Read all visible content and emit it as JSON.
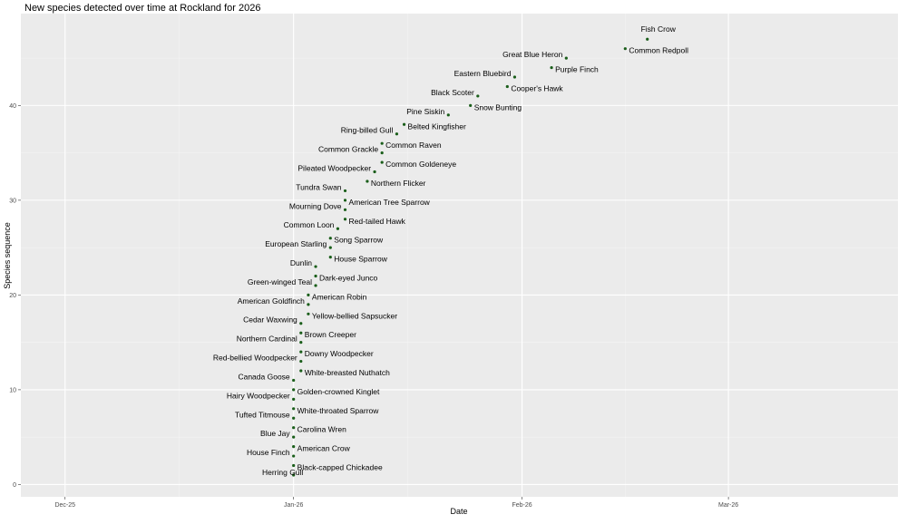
{
  "chart_data": {
    "type": "scatter",
    "title": "New species detected over time at Rockland for 2026",
    "xlabel": "Date",
    "ylabel": "Species sequence",
    "x_ticks": [
      {
        "date": "2025-12-01",
        "label": "Dec-25"
      },
      {
        "date": "2026-01-01",
        "label": "Jan-26"
      },
      {
        "date": "2026-02-01",
        "label": "Feb-26"
      },
      {
        "date": "2026-03-01",
        "label": "Mar-26"
      }
    ],
    "y_ticks": [
      0,
      10,
      20,
      30,
      40
    ],
    "xlim": [
      "2025-11-25",
      "2026-03-24"
    ],
    "ylim": [
      -1.3,
      49.7
    ],
    "grid": true,
    "point_color": "#1a5e1a",
    "points": [
      {
        "n": 1,
        "date": "2026-01-01",
        "label": "Herring Gull"
      },
      {
        "n": 2,
        "date": "2026-01-01",
        "label": "Black-capped Chickadee"
      },
      {
        "n": 3,
        "date": "2026-01-01",
        "label": "House Finch"
      },
      {
        "n": 4,
        "date": "2026-01-01",
        "label": "American Crow"
      },
      {
        "n": 5,
        "date": "2026-01-01",
        "label": "Blue Jay"
      },
      {
        "n": 6,
        "date": "2026-01-01",
        "label": "Carolina Wren"
      },
      {
        "n": 7,
        "date": "2026-01-01",
        "label": "Tufted Titmouse"
      },
      {
        "n": 8,
        "date": "2026-01-01",
        "label": "White-throated Sparrow"
      },
      {
        "n": 9,
        "date": "2026-01-01",
        "label": "Hairy Woodpecker"
      },
      {
        "n": 10,
        "date": "2026-01-01",
        "label": "Golden-crowned Kinglet"
      },
      {
        "n": 11,
        "date": "2026-01-01",
        "label": "Canada Goose"
      },
      {
        "n": 12,
        "date": "2026-01-02",
        "label": "White-breasted Nuthatch"
      },
      {
        "n": 13,
        "date": "2026-01-02",
        "label": "Red-bellied Woodpecker"
      },
      {
        "n": 14,
        "date": "2026-01-02",
        "label": "Downy Woodpecker"
      },
      {
        "n": 15,
        "date": "2026-01-02",
        "label": "Northern Cardinal"
      },
      {
        "n": 16,
        "date": "2026-01-02",
        "label": "Brown Creeper"
      },
      {
        "n": 17,
        "date": "2026-01-02",
        "label": "Cedar Waxwing"
      },
      {
        "n": 18,
        "date": "2026-01-03",
        "label": "Yellow-bellied Sapsucker"
      },
      {
        "n": 19,
        "date": "2026-01-03",
        "label": "American Goldfinch"
      },
      {
        "n": 20,
        "date": "2026-01-03",
        "label": "American Robin"
      },
      {
        "n": 21,
        "date": "2026-01-04",
        "label": "Green-winged Teal"
      },
      {
        "n": 22,
        "date": "2026-01-04",
        "label": "Dark-eyed Junco"
      },
      {
        "n": 23,
        "date": "2026-01-04",
        "label": "Dunlin"
      },
      {
        "n": 24,
        "date": "2026-01-06",
        "label": "House Sparrow"
      },
      {
        "n": 25,
        "date": "2026-01-06",
        "label": "European Starling"
      },
      {
        "n": 26,
        "date": "2026-01-06",
        "label": "Song Sparrow"
      },
      {
        "n": 27,
        "date": "2026-01-07",
        "label": "Common Loon"
      },
      {
        "n": 28,
        "date": "2026-01-08",
        "label": "Red-tailed Hawk"
      },
      {
        "n": 29,
        "date": "2026-01-08",
        "label": "Mourning Dove"
      },
      {
        "n": 30,
        "date": "2026-01-08",
        "label": "American Tree Sparrow"
      },
      {
        "n": 31,
        "date": "2026-01-08",
        "label": "Tundra Swan"
      },
      {
        "n": 32,
        "date": "2026-01-11",
        "label": "Northern Flicker"
      },
      {
        "n": 33,
        "date": "2026-01-12",
        "label": "Pileated Woodpecker"
      },
      {
        "n": 34,
        "date": "2026-01-13",
        "label": "Common Goldeneye"
      },
      {
        "n": 35,
        "date": "2026-01-13",
        "label": "Common Grackle"
      },
      {
        "n": 36,
        "date": "2026-01-13",
        "label": "Common Raven"
      },
      {
        "n": 37,
        "date": "2026-01-15",
        "label": "Ring-billed Gull"
      },
      {
        "n": 38,
        "date": "2026-01-16",
        "label": "Belted Kingfisher"
      },
      {
        "n": 39,
        "date": "2026-01-22",
        "label": "Pine Siskin"
      },
      {
        "n": 40,
        "date": "2026-01-25",
        "label": "Snow Bunting"
      },
      {
        "n": 41,
        "date": "2026-01-26",
        "label": "Black Scoter"
      },
      {
        "n": 42,
        "date": "2026-01-30",
        "label": "Cooper's Hawk"
      },
      {
        "n": 43,
        "date": "2026-01-31",
        "label": "Eastern Bluebird"
      },
      {
        "n": 44,
        "date": "2026-02-05",
        "label": "Purple Finch"
      },
      {
        "n": 45,
        "date": "2026-02-07",
        "label": "Great Blue Heron"
      },
      {
        "n": 46,
        "date": "2026-02-15",
        "label": "Common Redpoll"
      },
      {
        "n": 47,
        "date": "2026-02-18",
        "label": "Fish Crow"
      }
    ]
  }
}
